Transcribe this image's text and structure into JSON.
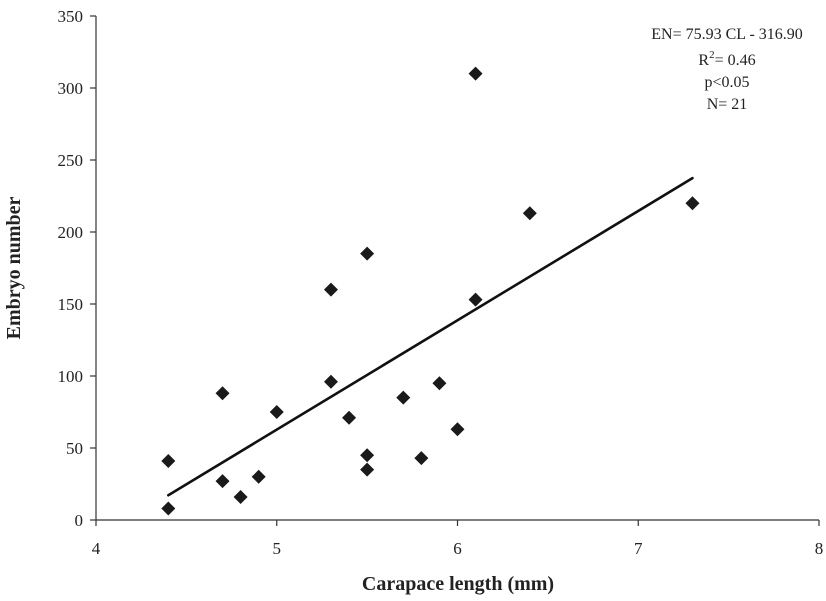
{
  "chart_data": {
    "type": "scatter",
    "xlabel": "Carapace length (mm)",
    "ylabel": "Embryo number",
    "xlim": [
      4,
      8
    ],
    "ylim": [
      0,
      350
    ],
    "x_ticks": [
      4,
      5,
      6,
      7,
      8
    ],
    "y_ticks": [
      0,
      50,
      100,
      150,
      200,
      250,
      300,
      350
    ],
    "grid": false,
    "legend": "none",
    "marker": "diamond",
    "marker_color": "#1a1a1a",
    "series": [
      {
        "points": [
          {
            "x": 4.4,
            "y": 41
          },
          {
            "x": 4.4,
            "y": 8
          },
          {
            "x": 4.7,
            "y": 88
          },
          {
            "x": 4.7,
            "y": 27
          },
          {
            "x": 4.8,
            "y": 16
          },
          {
            "x": 4.9,
            "y": 30
          },
          {
            "x": 5.0,
            "y": 75
          },
          {
            "x": 5.3,
            "y": 160
          },
          {
            "x": 5.3,
            "y": 96
          },
          {
            "x": 5.4,
            "y": 71
          },
          {
            "x": 5.5,
            "y": 185
          },
          {
            "x": 5.5,
            "y": 45
          },
          {
            "x": 5.5,
            "y": 35
          },
          {
            "x": 5.7,
            "y": 85
          },
          {
            "x": 5.8,
            "y": 43
          },
          {
            "x": 5.9,
            "y": 95
          },
          {
            "x": 6.0,
            "y": 63
          },
          {
            "x": 6.1,
            "y": 310
          },
          {
            "x": 6.1,
            "y": 153
          },
          {
            "x": 6.4,
            "y": 213
          },
          {
            "x": 7.3,
            "y": 220
          }
        ]
      }
    ],
    "trendline": {
      "type": "linear",
      "slope": 75.93,
      "intercept": -316.9,
      "x_start": 4.4,
      "x_end": 7.3
    },
    "annotations": [
      {
        "text": "EN= 75.93 CL - 316.90"
      },
      {
        "text": "R",
        "sup": "2",
        "suffix": "= 0.46"
      },
      {
        "text": "p<0.05"
      },
      {
        "text": "N= 21"
      }
    ]
  }
}
